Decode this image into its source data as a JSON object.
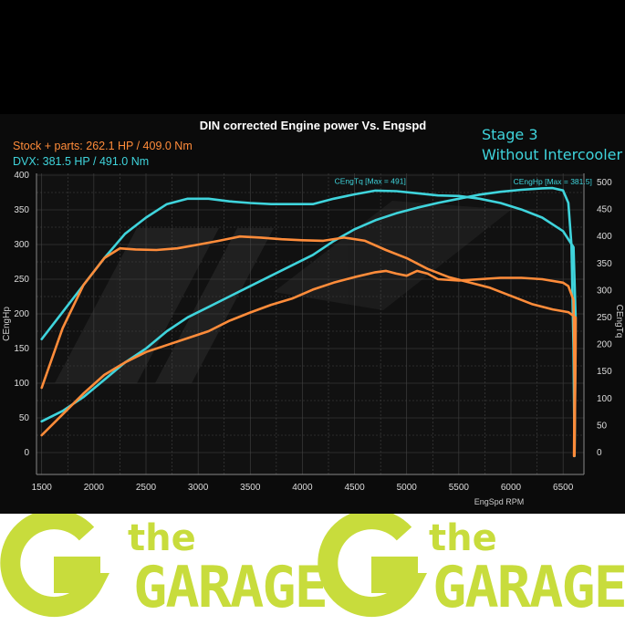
{
  "chart_data": {
    "type": "line",
    "title": "DIN corrected Engine power Vs. Engspd",
    "xlabel": "EngSpd RPM",
    "ylabel_left": "CEngHp",
    "ylabel_right": "CEngTq",
    "xlim": [
      1500,
      6600
    ],
    "ylim_left": [
      0,
      400
    ],
    "ylim_right": [
      0,
      500
    ],
    "x_ticks": [
      1500,
      2000,
      2500,
      3000,
      3500,
      4000,
      4500,
      5000,
      5500,
      6000,
      6500
    ],
    "y_ticks_left": [
      0,
      50,
      100,
      150,
      200,
      250,
      300,
      350,
      400
    ],
    "y_ticks_right": [
      0,
      50,
      100,
      150,
      200,
      250,
      300,
      350,
      400,
      450,
      500
    ],
    "grid": true,
    "legend": [
      {
        "text": "Stock + parts: 262.1 HP / 409.0 Nm",
        "color": "#ff8c3a"
      },
      {
        "text": "DVX:  381.5 HP / 491.0 Nm",
        "color": "#3fd4dc"
      }
    ],
    "annotation": [
      "Stage 3",
      "Without Intercooler"
    ],
    "max_labels": [
      {
        "text": "CEngTq [Max = 491]",
        "rpm": 4650,
        "value": 491,
        "axis": "right"
      },
      {
        "text": "CEngHp [Max = 381.5]",
        "rpm": 6400,
        "value": 381.5,
        "axis": "left"
      }
    ],
    "series": [
      {
        "name": "DVX CEngTq",
        "color": "#3fd4dc",
        "axis": "right",
        "x": [
          1500,
          1700,
          1900,
          2100,
          2300,
          2500,
          2700,
          2900,
          3100,
          3300,
          3500,
          3700,
          3900,
          4100,
          4300,
          4500,
          4700,
          4900,
          5100,
          5300,
          5500,
          5700,
          5900,
          6100,
          6300,
          6500,
          6600,
          6620,
          6610
        ],
        "values": [
          210,
          260,
          310,
          360,
          405,
          435,
          460,
          470,
          470,
          465,
          462,
          460,
          460,
          460,
          470,
          478,
          485,
          484,
          480,
          476,
          475,
          470,
          462,
          450,
          435,
          410,
          380,
          250,
          -5
        ]
      },
      {
        "name": "DVX CEngHp",
        "color": "#3fd4dc",
        "axis": "left",
        "x": [
          1500,
          1700,
          1900,
          2100,
          2300,
          2500,
          2700,
          2900,
          3100,
          3300,
          3500,
          3700,
          3900,
          4100,
          4300,
          4500,
          4700,
          4900,
          5100,
          5300,
          5500,
          5700,
          5900,
          6100,
          6300,
          6400,
          6500,
          6550,
          6580,
          6600,
          6610
        ],
        "values": [
          45,
          60,
          80,
          105,
          130,
          150,
          175,
          195,
          210,
          225,
          240,
          255,
          270,
          285,
          305,
          322,
          335,
          345,
          353,
          360,
          366,
          372,
          376,
          379,
          381,
          381.5,
          378,
          360,
          300,
          150,
          -5
        ]
      },
      {
        "name": "Stock + parts CEngTq",
        "color": "#ff8c3a",
        "axis": "right",
        "x": [
          1500,
          1700,
          1900,
          2100,
          2250,
          2400,
          2600,
          2800,
          3000,
          3200,
          3400,
          3600,
          3800,
          4000,
          4200,
          4400,
          4600,
          4800,
          5000,
          5200,
          5400,
          5600,
          5800,
          6000,
          6200,
          6400,
          6550,
          6620,
          6620,
          6610
        ],
        "values": [
          120,
          230,
          310,
          360,
          378,
          376,
          375,
          378,
          385,
          392,
          400,
          398,
          395,
          393,
          392,
          398,
          392,
          375,
          360,
          340,
          325,
          315,
          305,
          290,
          275,
          265,
          260,
          250,
          200,
          -5
        ]
      },
      {
        "name": "Stock + parts CEngHp",
        "color": "#ff8c3a",
        "axis": "left",
        "x": [
          1500,
          1700,
          1900,
          2100,
          2300,
          2500,
          2700,
          2900,
          3100,
          3300,
          3500,
          3700,
          3900,
          4100,
          4300,
          4500,
          4700,
          4800,
          4900,
          5000,
          5100,
          5200,
          5300,
          5500,
          5700,
          5900,
          6100,
          6300,
          6500,
          6550,
          6600,
          6610,
          6605
        ],
        "values": [
          25,
          55,
          85,
          112,
          130,
          145,
          155,
          165,
          175,
          190,
          202,
          213,
          222,
          235,
          245,
          253,
          260,
          262,
          258,
          255,
          262,
          258,
          250,
          248,
          250,
          252,
          252,
          250,
          245,
          240,
          220,
          100,
          -5
        ]
      }
    ]
  }
}
